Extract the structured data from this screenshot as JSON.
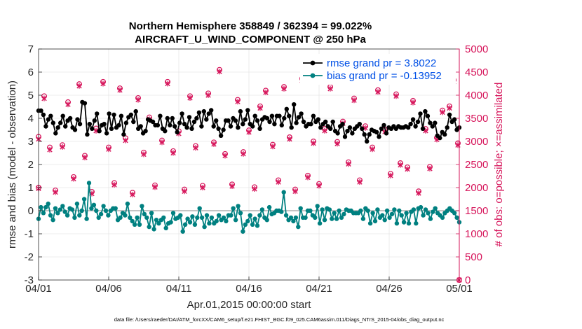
{
  "chart_data": {
    "type": "line",
    "title": "Northern Hemisphere 358849 / 362394 = 99.022%",
    "subtitle": "AIRCRAFT_U_WIND_COMPONENT @ 250 hPa",
    "xlabel": "Apr.01,2015 00:00:00 start",
    "ylabel": "rmse and bias (model - observation)",
    "y2label": "# of obs: o=possible; ×=assimilated",
    "footnote": "data file: /Users/raeder/DAI/ATM_forcXX/CAM6_setup/f.e21.FHIST_BGC.f09_025.CAM6assim.011/Diags_NTrS_2015-04/obs_diag_output.nc",
    "x_tick_labels": [
      "04/01",
      "04/06",
      "04/11",
      "04/16",
      "04/21",
      "04/26",
      "05/01"
    ],
    "xlim": [
      0,
      30
    ],
    "ylim": [
      -3,
      7
    ],
    "y_ticks": [
      "-3",
      "-2",
      "-1",
      "0",
      "1",
      "2",
      "3",
      "4",
      "5",
      "6",
      "7"
    ],
    "y2lim": [
      0,
      5000
    ],
    "y2_ticks": [
      "0",
      "500",
      "1000",
      "1500",
      "2000",
      "2500",
      "3000",
      "3500",
      "4000",
      "4500",
      "5000"
    ],
    "legend_location": "top-right",
    "colors": {
      "rmse": "#000000",
      "bias": "#008080",
      "obs": "#d6145a",
      "legend_text": "#0050e6",
      "zero_line": "#b0b0b0"
    },
    "series": [
      {
        "name": "rmse grand pr = 3.8022",
        "values": [
          4.33,
          4.33,
          4.15,
          3.65,
          3.95,
          4.1,
          3.8,
          3.35,
          3.6,
          3.8,
          4.1,
          3.65,
          3.9,
          4.0,
          3.6,
          3.5,
          3.95,
          3.75,
          4.7,
          4.65,
          3.3,
          3.75,
          3.55,
          3.9,
          4.2,
          3.45,
          3.7,
          3.75,
          3.35,
          4.2,
          3.55,
          4.15,
          3.6,
          3.7,
          4.1,
          3.3,
          3.8,
          4.05,
          4.15,
          3.85,
          4.3,
          3.55,
          3.65,
          3.35,
          3.45,
          3.95,
          3.9,
          3.85,
          3.7,
          3.7,
          4.1,
          3.55,
          3.45,
          4.0,
          3.7,
          4.0,
          3.65,
          3.4,
          3.8,
          4.2,
          3.75,
          3.6,
          4.05,
          3.55,
          3.85,
          4.0,
          4.25,
          3.65,
          4.3,
          3.95,
          4.2,
          4.35,
          3.65,
          3.9,
          3.55,
          3.25,
          3.5,
          3.9,
          3.9,
          3.65,
          4.0,
          3.9,
          3.6,
          4.3,
          3.75,
          3.95,
          4.35,
          3.75,
          3.65,
          4.1,
          3.9,
          3.55,
          3.95,
          4.05,
          4.0,
          3.85,
          4.1,
          3.75,
          4.1,
          4.1,
          3.7,
          4.0,
          4.4,
          4.1,
          3.6,
          4.6,
          3.8,
          4.05,
          4.2,
          3.85,
          3.65,
          3.75,
          3.75,
          4.1,
          3.85,
          3.95,
          3.6,
          3.75,
          3.85,
          3.65,
          3.55,
          3.85,
          3.45,
          3.35,
          3.65,
          3.75,
          3.2,
          3.45,
          3.6,
          3.35,
          3.55,
          3.65,
          3.75,
          3.55,
          3.3,
          3.0,
          3.3,
          3.5,
          3.45,
          3.4,
          3.2,
          3.55,
          3.7,
          3.35,
          3.6,
          3.55,
          3.65,
          3.55,
          3.65,
          3.6,
          3.6,
          3.65,
          3.6,
          3.75,
          3.95,
          3.65,
          3.85,
          4.2,
          3.55,
          4.3,
          4.1,
          3.8,
          3.65,
          3.8,
          3.25,
          3.15,
          3.4,
          3.3,
          3.6,
          4.15,
          3.85,
          3.95,
          3.5,
          3.6
        ],
        "color": "#000000"
      },
      {
        "name": "bias grand pr = -0.13952",
        "values": [
          -0.35,
          0.15,
          -0.1,
          0.15,
          0.3,
          -0.2,
          -0.4,
          0.1,
          -0.1,
          0.05,
          0.2,
          -0.05,
          -0.2,
          0.1,
          0.05,
          -0.3,
          0.3,
          -0.2,
          0.0,
          0.5,
          -0.35,
          1.2,
          0.1,
          0.25,
          0.0,
          -0.3,
          -0.15,
          0.2,
          0.0,
          -0.2,
          0.0,
          0.1,
          0.1,
          -0.4,
          -0.3,
          -0.1,
          -0.2,
          0.3,
          -0.3,
          -0.45,
          -0.6,
          -0.3,
          -0.6,
          0.2,
          -0.15,
          -0.3,
          -0.7,
          -0.1,
          -0.8,
          -0.4,
          -0.55,
          -0.4,
          -0.3,
          -0.75,
          -0.55,
          -0.5,
          -0.1,
          -0.35,
          -0.3,
          -0.2,
          -0.9,
          -0.6,
          -0.35,
          -0.5,
          -0.25,
          -0.6,
          -0.3,
          0.1,
          -0.3,
          -0.7,
          -0.2,
          -0.55,
          -0.3,
          -0.55,
          -0.45,
          -0.2,
          -0.4,
          -0.3,
          -0.45,
          -0.2,
          -0.2,
          0.1,
          -0.4,
          0.2,
          -0.1,
          -0.9,
          -0.6,
          -0.45,
          -0.2,
          -0.6,
          -0.35,
          -0.65,
          -0.2,
          0.05,
          -0.3,
          -0.4,
          0.15,
          -0.15,
          -0.1,
          0.0,
          0.0,
          -0.05,
          0.8,
          -0.2,
          -0.4,
          -0.3,
          -0.45,
          -0.3,
          -0.7,
          0.1,
          -0.3,
          -0.3,
          0.0,
          0.0,
          -0.2,
          -0.3,
          0.2,
          -0.55,
          0.05,
          -0.4,
          0.1,
          0.05,
          -0.35,
          -0.1,
          -0.35,
          0.0,
          -0.3,
          -0.15,
          0.05,
          0.0,
          0.0,
          -0.1,
          -0.1,
          -0.1,
          0.0,
          -0.35,
          0.1,
          0.0,
          -0.55,
          -0.1,
          -0.45,
          0.05,
          -0.3,
          -0.2,
          -0.4,
          0.0,
          -0.3,
          -0.15,
          0.05,
          -0.55,
          0.0,
          -0.2,
          -0.5,
          -0.1,
          -0.55,
          -0.05,
          0.05,
          -0.55,
          0.1,
          0.15,
          -0.2,
          0.05,
          -0.1,
          -0.35,
          -0.05,
          0.1,
          -0.1,
          -0.2,
          -0.3,
          -0.1,
          0.0,
          0.1,
          0.0,
          -0.1,
          -0.3,
          -0.5
        ],
        "color": "#008080"
      },
      {
        "name": "# of obs possible",
        "axis": "right",
        "marker": "circle",
        "points": [
          [
            0,
            3100
          ],
          [
            0,
            2000
          ],
          [
            0.4,
            3980
          ],
          [
            0.8,
            2870
          ],
          [
            1.2,
            1940
          ],
          [
            1.7,
            2920
          ],
          [
            2.1,
            3850
          ],
          [
            2.5,
            2230
          ],
          [
            2.9,
            4240
          ],
          [
            3.3,
            2690
          ],
          [
            3.8,
            1910
          ],
          [
            4.1,
            3280
          ],
          [
            4.6,
            4290
          ],
          [
            5.0,
            2870
          ],
          [
            5.4,
            2100
          ],
          [
            5.8,
            4150
          ],
          [
            6.2,
            3070
          ],
          [
            6.7,
            1890
          ],
          [
            7.1,
            3940
          ],
          [
            7.5,
            2760
          ],
          [
            7.9,
            3520
          ],
          [
            8.3,
            2050
          ],
          [
            8.8,
            3020
          ],
          [
            9.2,
            4290
          ],
          [
            9.6,
            2790
          ],
          [
            10.0,
            3220
          ],
          [
            10.4,
            1960
          ],
          [
            10.8,
            3980
          ],
          [
            11.2,
            2900
          ],
          [
            11.7,
            2040
          ],
          [
            12.1,
            4040
          ],
          [
            12.5,
            2980
          ],
          [
            12.9,
            4550
          ],
          [
            13.3,
            2730
          ],
          [
            13.8,
            2070
          ],
          [
            14.2,
            3900
          ],
          [
            14.6,
            2770
          ],
          [
            15.0,
            3240
          ],
          [
            15.4,
            2010
          ],
          [
            15.8,
            3760
          ],
          [
            16.2,
            4100
          ],
          [
            16.7,
            2930
          ],
          [
            17.1,
            2160
          ],
          [
            17.5,
            4180
          ],
          [
            17.9,
            3090
          ],
          [
            18.3,
            1960
          ],
          [
            18.8,
            4360
          ],
          [
            19.2,
            2260
          ],
          [
            19.6,
            3000
          ],
          [
            20.0,
            2080
          ],
          [
            20.4,
            3270
          ],
          [
            20.8,
            4180
          ],
          [
            21.3,
            2990
          ],
          [
            21.7,
            3430
          ],
          [
            22.1,
            2550
          ],
          [
            22.5,
            3930
          ],
          [
            22.9,
            2160
          ],
          [
            23.3,
            3330
          ],
          [
            23.8,
            2870
          ],
          [
            24.2,
            4110
          ],
          [
            24.7,
            3250
          ],
          [
            25.1,
            2300
          ],
          [
            25.5,
            4020
          ],
          [
            25.8,
            2530
          ],
          [
            26.3,
            2440
          ],
          [
            26.7,
            3880
          ],
          [
            27.1,
            1920
          ],
          [
            27.6,
            3270
          ],
          [
            27.9,
            2450
          ],
          [
            28.4,
            3080
          ],
          [
            28.8,
            3670
          ],
          [
            29.3,
            3760
          ],
          [
            29.6,
            4330
          ],
          [
            29.9,
            2960
          ],
          [
            30,
            0
          ]
        ]
      },
      {
        "name": "# of obs assimilated",
        "axis": "right",
        "marker": "x",
        "points": [
          [
            0,
            3050
          ],
          [
            0,
            1980
          ],
          [
            0.4,
            3930
          ],
          [
            0.8,
            2820
          ],
          [
            1.2,
            1900
          ],
          [
            1.7,
            2880
          ],
          [
            2.1,
            3800
          ],
          [
            2.5,
            2190
          ],
          [
            2.9,
            4200
          ],
          [
            3.3,
            2650
          ],
          [
            3.8,
            1870
          ],
          [
            4.1,
            3230
          ],
          [
            4.6,
            4250
          ],
          [
            5.0,
            2830
          ],
          [
            5.4,
            2060
          ],
          [
            5.8,
            4110
          ],
          [
            6.2,
            3020
          ],
          [
            6.7,
            1850
          ],
          [
            7.1,
            3900
          ],
          [
            7.5,
            2720
          ],
          [
            7.9,
            3480
          ],
          [
            8.3,
            2010
          ],
          [
            8.8,
            2980
          ],
          [
            9.2,
            4250
          ],
          [
            9.6,
            2750
          ],
          [
            10.0,
            3170
          ],
          [
            10.4,
            1920
          ],
          [
            10.8,
            3940
          ],
          [
            11.2,
            2860
          ],
          [
            11.7,
            2000
          ],
          [
            12.1,
            4000
          ],
          [
            12.5,
            2940
          ],
          [
            12.9,
            4510
          ],
          [
            13.3,
            2690
          ],
          [
            13.8,
            2030
          ],
          [
            14.2,
            3860
          ],
          [
            14.6,
            2730
          ],
          [
            15.0,
            3200
          ],
          [
            15.4,
            1970
          ],
          [
            15.8,
            3720
          ],
          [
            16.2,
            4060
          ],
          [
            16.7,
            2890
          ],
          [
            17.1,
            2120
          ],
          [
            17.5,
            4140
          ],
          [
            17.9,
            3050
          ],
          [
            18.3,
            1920
          ],
          [
            18.8,
            4320
          ],
          [
            19.2,
            2220
          ],
          [
            19.6,
            2960
          ],
          [
            20.0,
            2040
          ],
          [
            20.4,
            3230
          ],
          [
            20.8,
            4140
          ],
          [
            21.3,
            2950
          ],
          [
            21.7,
            3390
          ],
          [
            22.1,
            2510
          ],
          [
            22.5,
            3890
          ],
          [
            22.9,
            2120
          ],
          [
            23.3,
            3290
          ],
          [
            23.8,
            2830
          ],
          [
            24.2,
            4070
          ],
          [
            24.7,
            3210
          ],
          [
            25.1,
            2260
          ],
          [
            25.5,
            3980
          ],
          [
            25.8,
            2490
          ],
          [
            26.3,
            2400
          ],
          [
            26.7,
            3840
          ],
          [
            27.1,
            1880
          ],
          [
            27.6,
            3230
          ],
          [
            27.9,
            2410
          ],
          [
            28.4,
            3040
          ],
          [
            28.8,
            3630
          ],
          [
            29.3,
            3720
          ],
          [
            29.6,
            4290
          ],
          [
            29.9,
            2920
          ],
          [
            30,
            0
          ]
        ]
      }
    ]
  }
}
